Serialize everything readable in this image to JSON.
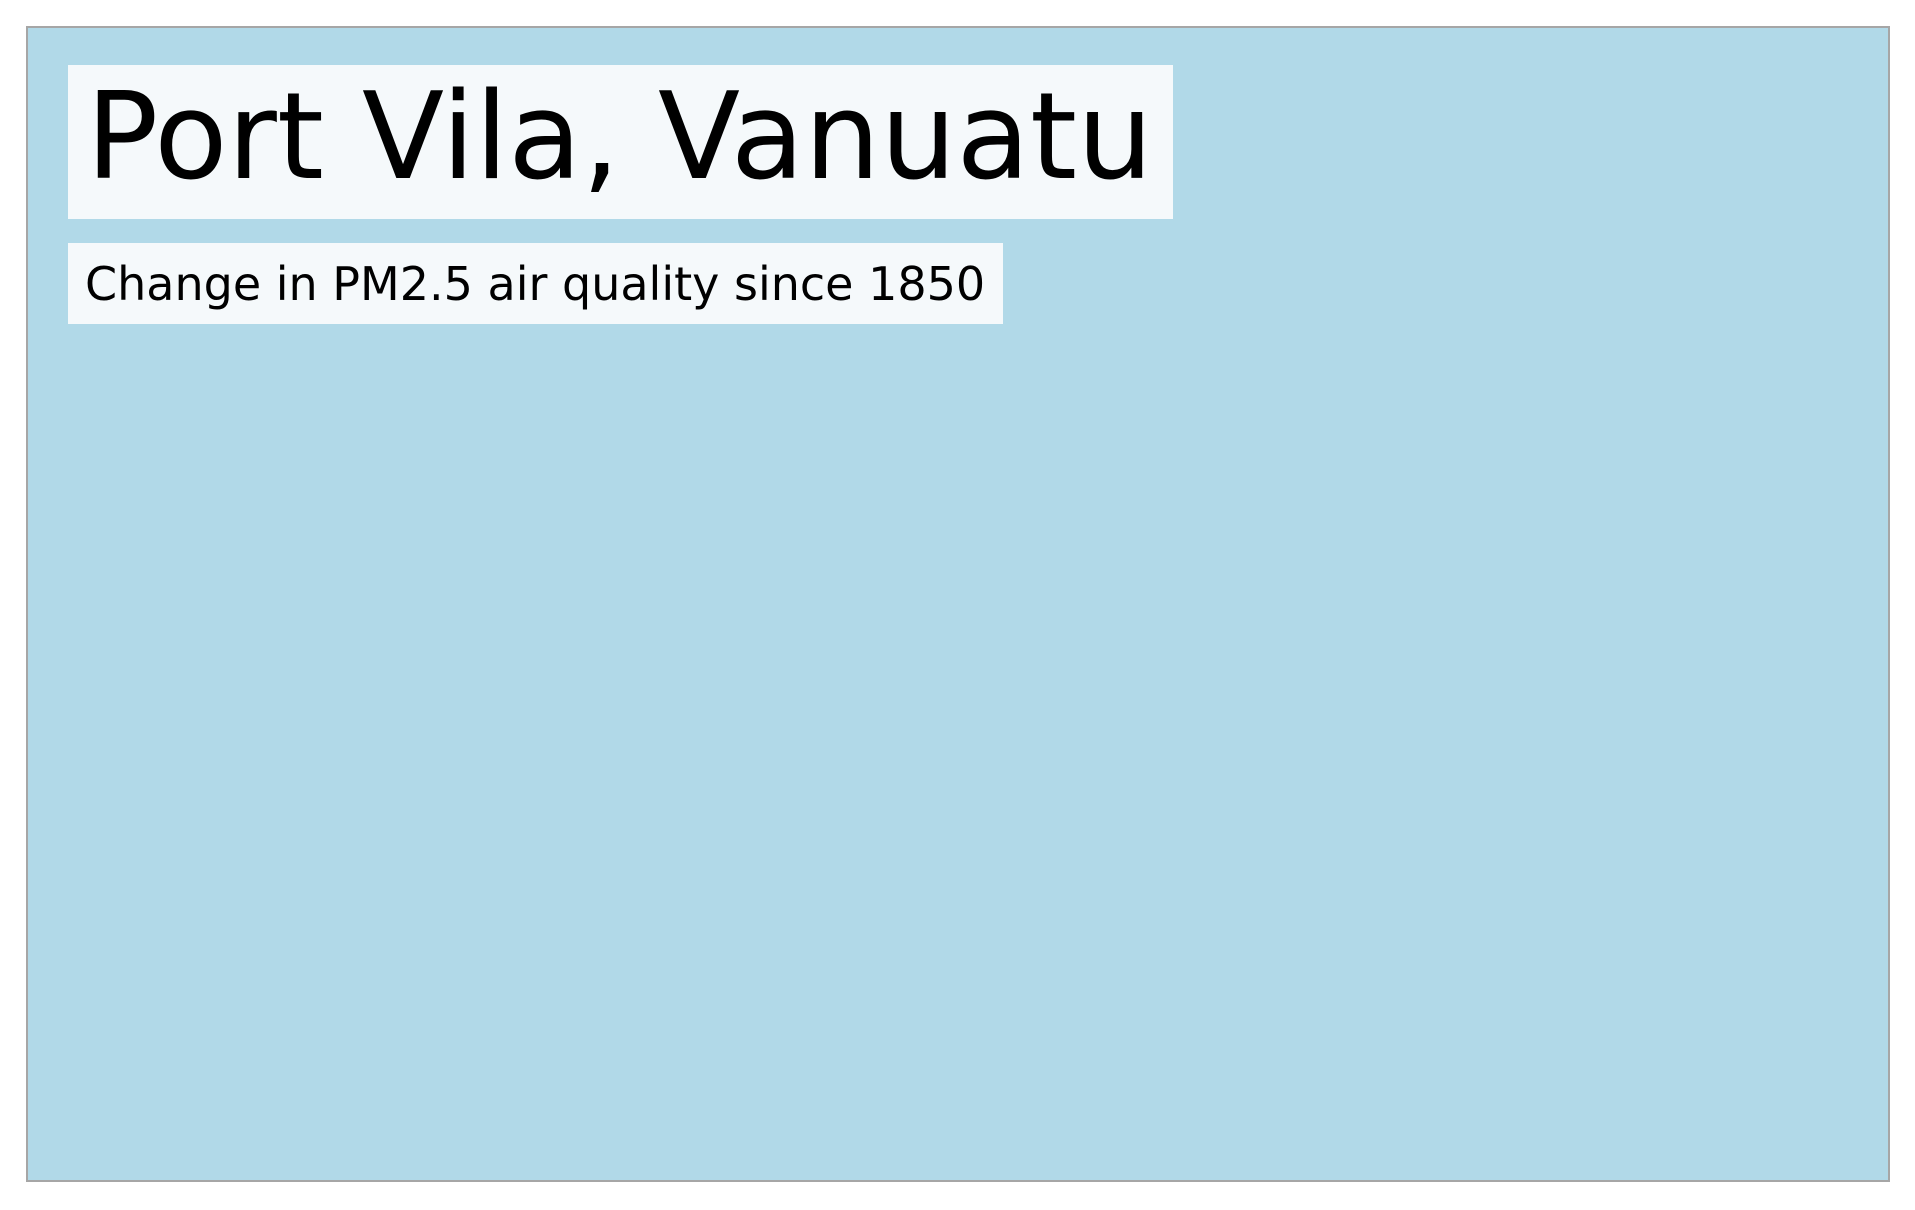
{
  "map": {
    "title": "Port Vila, Vanuatu",
    "subtitle": "Change in PM2.5 air quality since 1850",
    "colors": {
      "water": "#b1d9e8",
      "label_background": "#f5f9fb",
      "frame_border": "#a6a6a6"
    }
  }
}
